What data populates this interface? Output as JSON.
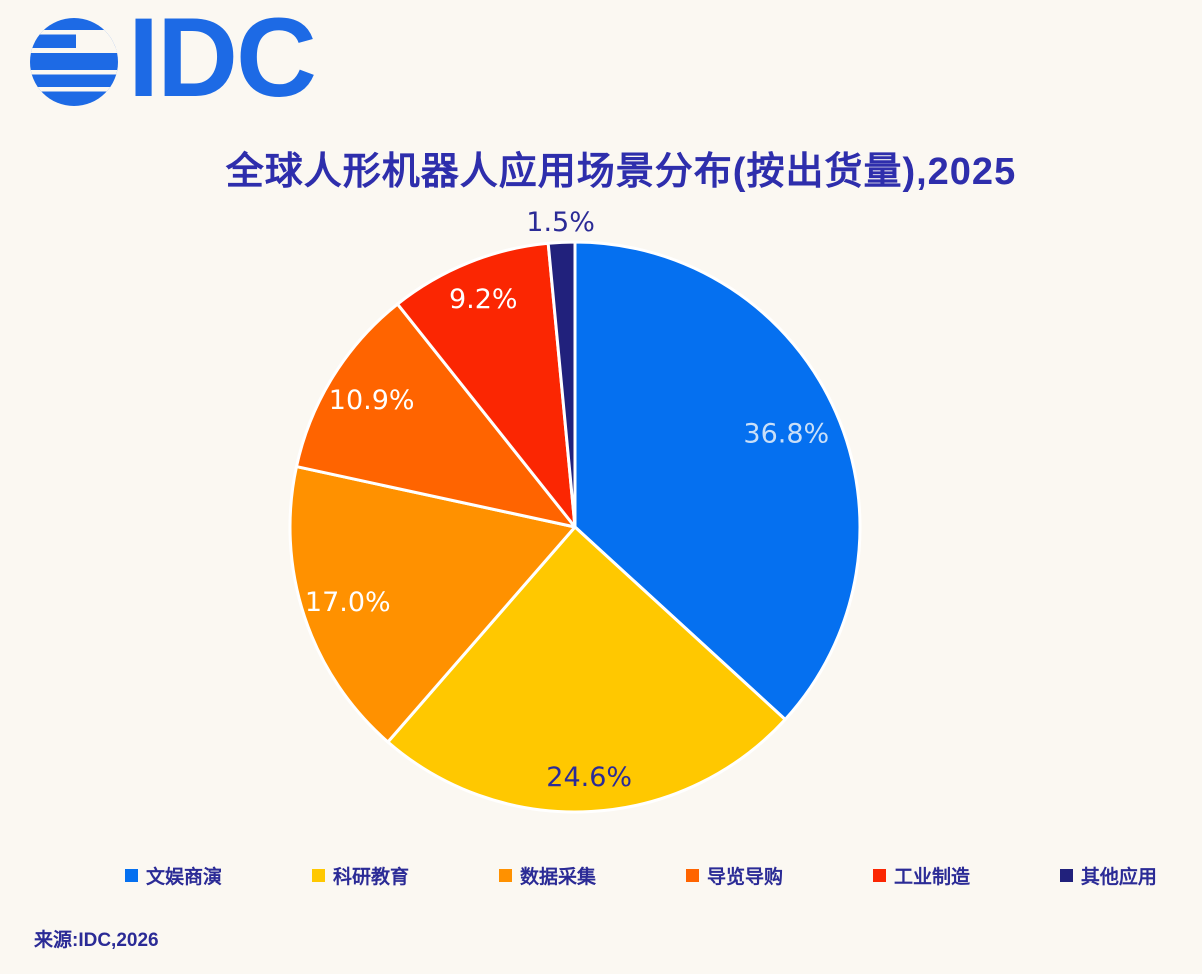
{
  "page": {
    "background": "#FBF8F2"
  },
  "logo": {
    "text": "IDC",
    "color": "#1D6AE5",
    "icon": "idc-striped-globe-icon"
  },
  "chart_data": {
    "type": "pie",
    "title": "全球人形机器人应用场景分布(按出货量),2025",
    "title_color": "#2E2EAC",
    "unit": "percent",
    "start_angle": "12-oclock",
    "direction": "clockwise",
    "legend_position": "bottom",
    "slice_separator_color": "#FFFFFF",
    "slices": [
      {
        "label": "文娱商演",
        "value": 36.8,
        "value_label": "36.8%",
        "color": "#0570F0",
        "value_label_color": "#C9DFF8",
        "value_label_placement": "inside"
      },
      {
        "label": "科研教育",
        "value": 24.6,
        "value_label": "24.6%",
        "color": "#FFC800",
        "value_label_color": "#2B2B96",
        "value_label_placement": "inside"
      },
      {
        "label": "数据采集",
        "value": 17.0,
        "value_label": "17.0%",
        "color": "#FF9100",
        "value_label_color": "#FFFFFF",
        "value_label_placement": "inside"
      },
      {
        "label": "导览导购",
        "value": 10.9,
        "value_label": "10.9%",
        "color": "#FF6400",
        "value_label_color": "#FFFFFF",
        "value_label_placement": "inside"
      },
      {
        "label": "工业制造",
        "value": 9.2,
        "value_label": "9.2%",
        "color": "#FB2602",
        "value_label_color": "#FFFFFF",
        "value_label_placement": "inside"
      },
      {
        "label": "其他应用",
        "value": 1.5,
        "value_label": "1.5%",
        "color": "#21217C",
        "value_label_color": "#2B2B96",
        "value_label_placement": "outside-top"
      }
    ]
  },
  "source": "来源:IDC,2026"
}
